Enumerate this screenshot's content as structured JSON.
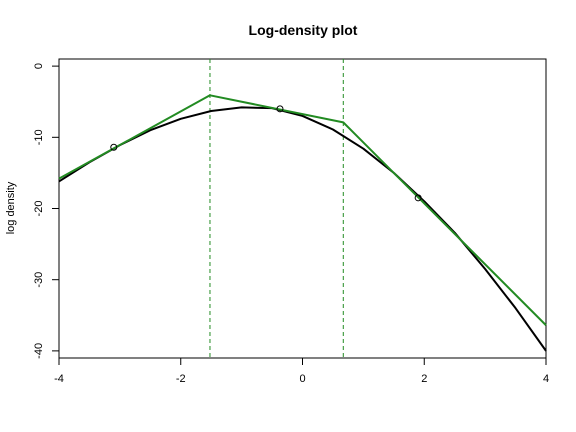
{
  "chart_data": {
    "type": "line",
    "title": "Log-density plot",
    "xlabel": "",
    "ylabel": "log density",
    "xlim": [
      -4.0,
      4.0
    ],
    "ylim": [
      -41,
      1
    ],
    "x_ticks": [
      -4,
      -2,
      0,
      2,
      4
    ],
    "x_tick_labels": [
      "-4",
      "-2",
      "0",
      "2",
      "4"
    ],
    "y_ticks": [
      0,
      -10,
      -20,
      -30,
      -40
    ],
    "y_tick_labels": [
      "0",
      "-10",
      "-20",
      "-30",
      "-40"
    ],
    "grid": false,
    "series": [
      {
        "style": "line",
        "color": "#000000",
        "x": [
          -4.0,
          -3.5,
          -3.0,
          -2.5,
          -2.0,
          -1.5,
          -1.0,
          -0.5,
          0.0,
          0.5,
          1.0,
          1.5,
          2.0,
          2.5,
          3.0,
          3.5,
          4.0
        ],
        "y": [
          -16.2,
          -13.5,
          -11.1,
          -9.0,
          -7.4,
          -6.3,
          -5.8,
          -5.9,
          -7.0,
          -8.9,
          -11.6,
          -15.0,
          -19.0,
          -23.4,
          -28.5,
          -34.0,
          -40.0
        ]
      },
      {
        "style": "line",
        "color": "#228B22",
        "x": [
          -4.0,
          -1.52,
          0.67,
          4.0
        ],
        "y": [
          -15.8,
          -4.1,
          -7.9,
          -36.4
        ]
      },
      {
        "style": "points",
        "color": "#000000",
        "x": [
          -3.1,
          -0.37,
          1.9
        ],
        "y": [
          -11.4,
          -6.0,
          -18.5
        ]
      },
      {
        "style": "vlines",
        "color": "#228B22",
        "dash": true,
        "x": [
          -1.52,
          0.67
        ]
      }
    ]
  }
}
